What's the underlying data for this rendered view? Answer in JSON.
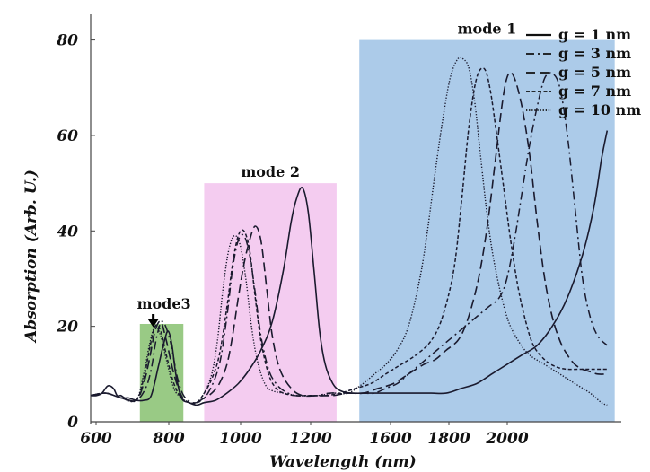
{
  "chart_data": {
    "type": "line",
    "xlabel": "Wavelength (nm)",
    "ylabel": "Absorption (Arb. U.)",
    "xlim": [
      600,
      2000
    ],
    "ylim": [
      0,
      85
    ],
    "x_ticks": [
      600,
      800,
      1000,
      1200,
      1600,
      1800,
      2000
    ],
    "y_ticks": [
      0,
      20,
      40,
      60,
      80
    ],
    "legend_position": "top-right",
    "grid": false,
    "regions": [
      {
        "label": "mode 1",
        "x_range": [
          1310,
          1985
        ],
        "y_top": 80,
        "color": "#a8c8e8"
      },
      {
        "label": "mode 2",
        "x_range": [
          900,
          1250
        ],
        "y_top": 50,
        "color": "#f3c9ef"
      },
      {
        "label": "mode3",
        "x_range": [
          730,
          845
        ],
        "y_top": 20.5,
        "color": "#94c77e"
      }
    ],
    "annotations": [
      {
        "text": "mode3",
        "type": "arrow",
        "x": 770,
        "y": 20
      }
    ],
    "series": [
      {
        "name": "g = 1 nm",
        "dash": "solid",
        "x": [
          600,
          615,
          630,
          645,
          660,
          670,
          680,
          690,
          700,
          720,
          740,
          760,
          780,
          795,
          805,
          815,
          825,
          840,
          860,
          880,
          900,
          930,
          960,
          990,
          1020,
          1050,
          1080,
          1110,
          1130,
          1145,
          1160,
          1175,
          1190,
          1205,
          1220,
          1240,
          1260,
          1290,
          1320,
          1350,
          1380,
          1420,
          1460,
          1500,
          1540,
          1580,
          1620,
          1660,
          1700,
          1740,
          1780,
          1820,
          1860,
          1900,
          1930,
          1950,
          1965
        ],
        "y": [
          5.5,
          5.5,
          6,
          7.5,
          7,
          5.5,
          5.5,
          5,
          5,
          4.5,
          4.5,
          5.5,
          12,
          17,
          19,
          16,
          10,
          5,
          4,
          3.5,
          4,
          4.5,
          6,
          8,
          11,
          15,
          21,
          32,
          42,
          47,
          49,
          44,
          32,
          19,
          12,
          8,
          6.5,
          6,
          6,
          6,
          6,
          6,
          6,
          6,
          6,
          7,
          8,
          10,
          12,
          14,
          16,
          20,
          26,
          35,
          45,
          55,
          61
        ]
      },
      {
        "name": "g = 3 nm",
        "dash": "dashdot",
        "x": [
          600,
          640,
          680,
          720,
          745,
          760,
          775,
          790,
          810,
          830,
          850,
          880,
          910,
          940,
          960,
          975,
          990,
          1005,
          1020,
          1035,
          1050,
          1070,
          1090,
          1110,
          1140,
          1170,
          1200,
          1230,
          1260,
          1290,
          1320,
          1350,
          1380,
          1410,
          1440,
          1470,
          1500,
          1530,
          1560,
          1590,
          1620,
          1650,
          1680,
          1700,
          1720,
          1740,
          1760,
          1780,
          1800,
          1820,
          1840,
          1860,
          1880,
          1900,
          1920,
          1940,
          1965
        ],
        "y": [
          5.5,
          6,
          5,
          4.5,
          7,
          11,
          18,
          21,
          17,
          9,
          5,
          4,
          6,
          12,
          22,
          32,
          38,
          39,
          35,
          27,
          18,
          11,
          8,
          6.5,
          5.5,
          5.5,
          5.5,
          6,
          6,
          6,
          6,
          6,
          7,
          8,
          10,
          12,
          14,
          16,
          18,
          20,
          22,
          24,
          26,
          30,
          38,
          48,
          58,
          66,
          72,
          73,
          70,
          60,
          45,
          30,
          22,
          18,
          16
        ]
      },
      {
        "name": "g = 5 nm",
        "dash": "dashed",
        "x": [
          600,
          640,
          680,
          720,
          740,
          755,
          770,
          785,
          800,
          820,
          840,
          860,
          880,
          900,
          920,
          940,
          960,
          975,
          990,
          1005,
          1020,
          1035,
          1050,
          1065,
          1080,
          1100,
          1130,
          1160,
          1200,
          1240,
          1280,
          1320,
          1360,
          1400,
          1440,
          1480,
          1510,
          1540,
          1570,
          1590,
          1610,
          1630,
          1650,
          1670,
          1690,
          1705,
          1720,
          1740,
          1760,
          1780,
          1800,
          1820,
          1840,
          1860,
          1880,
          1900,
          1920,
          1940,
          1965
        ],
        "y": [
          5.5,
          6,
          5,
          4.5,
          8,
          13,
          19,
          21,
          17,
          10,
          5.5,
          4,
          4,
          5,
          6,
          8,
          12,
          18,
          26,
          33,
          38,
          41,
          38,
          28,
          18,
          11,
          7,
          5.5,
          5.5,
          5.5,
          6,
          6,
          7,
          8,
          10,
          12,
          13,
          15,
          17,
          20,
          25,
          32,
          42,
          55,
          68,
          73,
          72,
          66,
          56,
          42,
          30,
          22,
          17,
          14,
          12,
          11,
          10.5,
          10,
          10
        ]
      },
      {
        "name": "g = 7 nm",
        "dash": "dotted",
        "x": [
          600,
          640,
          680,
          720,
          740,
          755,
          770,
          785,
          800,
          820,
          840,
          860,
          880,
          900,
          920,
          940,
          960,
          975,
          990,
          1005,
          1020,
          1035,
          1050,
          1070,
          1090,
          1110,
          1140,
          1180,
          1220,
          1260,
          1300,
          1340,
          1380,
          1420,
          1460,
          1500,
          1530,
          1560,
          1580,
          1600,
          1620,
          1640,
          1655,
          1670,
          1690,
          1710,
          1730,
          1750,
          1770,
          1800,
          1830,
          1860,
          1890,
          1920,
          1940,
          1965
        ],
        "y": [
          5.5,
          6,
          5,
          4.5,
          9,
          15,
          20,
          19,
          14,
          8,
          5,
          4,
          4,
          6,
          9,
          14,
          24,
          33,
          39,
          40,
          36,
          26,
          17,
          10,
          7,
          6,
          5.5,
          5.5,
          5.5,
          6,
          7,
          8,
          10,
          12,
          14,
          17,
          22,
          32,
          46,
          62,
          72,
          74,
          70,
          62,
          50,
          38,
          28,
          21,
          16,
          13,
          11.5,
          11,
          11,
          11,
          11,
          11
        ]
      },
      {
        "name": "g = 10 nm",
        "dash": "fine-dotted",
        "x": [
          600,
          640,
          680,
          720,
          740,
          755,
          770,
          785,
          800,
          820,
          840,
          860,
          880,
          900,
          920,
          935,
          950,
          965,
          980,
          995,
          1010,
          1025,
          1040,
          1060,
          1080,
          1110,
          1150,
          1200,
          1240,
          1280,
          1320,
          1350,
          1380,
          1410,
          1440,
          1470,
          1490,
          1510,
          1530,
          1550,
          1570,
          1585,
          1600,
          1615,
          1630,
          1650,
          1670,
          1700,
          1730,
          1760,
          1800,
          1840,
          1880,
          1920,
          1950,
          1965
        ],
        "y": [
          5.5,
          6,
          5,
          4.5,
          10,
          16,
          20,
          18,
          13,
          7,
          5,
          4,
          4,
          6,
          10,
          17,
          28,
          36,
          39,
          37,
          30,
          20,
          13,
          8,
          6.5,
          6,
          5.5,
          5.5,
          6,
          6,
          8,
          10,
          12,
          15,
          20,
          30,
          40,
          52,
          63,
          72,
          76,
          76,
          74,
          67,
          56,
          42,
          32,
          22,
          17,
          14,
          12,
          10,
          8,
          6,
          4,
          3.5
        ]
      }
    ]
  }
}
